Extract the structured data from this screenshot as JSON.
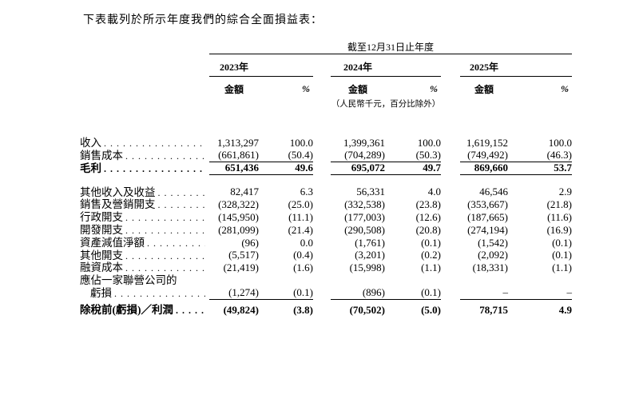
{
  "title": "下表載列於所示年度我們的綜合全面損益表：",
  "table": {
    "period_header": "截至12月31日止年度",
    "years": [
      "2023年",
      "2024年",
      "2025年"
    ],
    "col_headers": {
      "amount": "金額",
      "percent": "%"
    },
    "unit_note": "（人民幣千元，百分比除外）",
    "rows": [
      {
        "label": "收入",
        "leader": true,
        "values": [
          "1,313,297",
          "100.0",
          "1,399,361",
          "100.0",
          "1,619,152",
          "100.0"
        ]
      },
      {
        "label": "銷售成本",
        "leader": true,
        "rule_below": true,
        "values": [
          "(661,861)",
          "(50.4)",
          "(704,289)",
          "(50.3)",
          "(749,492)",
          "(46.3)"
        ]
      },
      {
        "label": "毛利",
        "leader": true,
        "bold": true,
        "rule_below": true,
        "gap_after": 14,
        "values": [
          "651,436",
          "49.6",
          "695,072",
          "49.7",
          "869,660",
          "53.7"
        ]
      },
      {
        "label": "其他收入及收益",
        "leader": true,
        "values": [
          "82,417",
          "6.3",
          "56,331",
          "4.0",
          "46,546",
          "2.9"
        ]
      },
      {
        "label": "銷售及營銷開支",
        "leader": true,
        "values": [
          "(328,322)",
          "(25.0)",
          "(332,538)",
          "(23.8)",
          "(353,667)",
          "(21.8)"
        ]
      },
      {
        "label": "行政開支",
        "leader": true,
        "values": [
          "(145,950)",
          "(11.1)",
          "(177,003)",
          "(12.6)",
          "(187,665)",
          "(11.6)"
        ]
      },
      {
        "label": "開發開支",
        "leader": true,
        "values": [
          "(281,099)",
          "(21.4)",
          "(290,508)",
          "(20.8)",
          "(274,194)",
          "(16.9)"
        ]
      },
      {
        "label": "資產減值淨額",
        "leader": true,
        "values": [
          "(96)",
          "0.0",
          "(1,761)",
          "(0.1)",
          "(1,542)",
          "(0.1)"
        ]
      },
      {
        "label": "其他開支",
        "leader": true,
        "values": [
          "(5,517)",
          "(0.4)",
          "(3,201)",
          "(0.2)",
          "(2,092)",
          "(0.1)"
        ]
      },
      {
        "label": "融資成本",
        "leader": true,
        "values": [
          "(21,419)",
          "(1.6)",
          "(15,998)",
          "(1.1)",
          "(18,331)",
          "(1.1)"
        ]
      },
      {
        "label": "應佔一家聯營公司的",
        "leader": false,
        "values": [
          "",
          "",
          "",
          "",
          "",
          ""
        ]
      },
      {
        "label": "虧損",
        "leader": true,
        "indent": true,
        "rule_below": true,
        "gap_after": 6,
        "values": [
          "(1,274)",
          "(0.1)",
          "(896)",
          "(0.1)",
          "–",
          "–"
        ]
      },
      {
        "label": "除稅前(虧損)／利潤",
        "leader": true,
        "bold": true,
        "values": [
          "(49,824)",
          "(3.8)",
          "(70,502)",
          "(5.0)",
          "78,715",
          "4.9"
        ]
      }
    ]
  }
}
